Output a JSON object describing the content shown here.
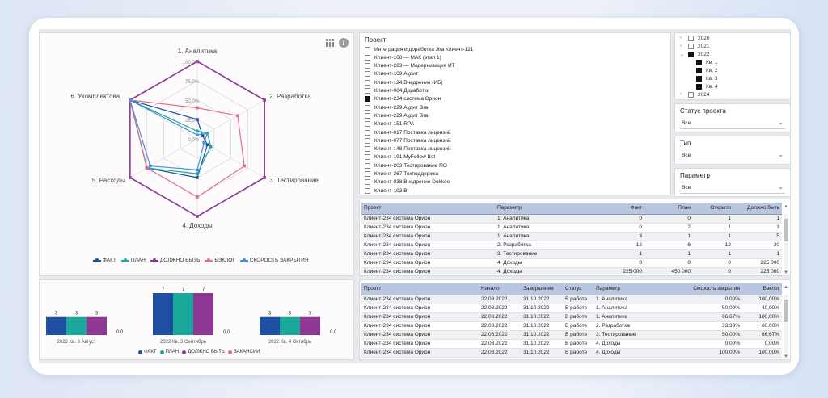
{
  "colors": {
    "fact": "#1f4fa3",
    "plan": "#1aa89a",
    "should": "#8e3794",
    "backlog": "#e46d8c",
    "speed": "#4a90d9",
    "vacancies": "#e46d8c"
  },
  "chart_data": [
    {
      "type": "radar",
      "categories": [
        "1. Аналитика",
        "2. Разработка",
        "3. Тестирование",
        "4. Доходы",
        "5. Расходы",
        "6. Укомплектова..."
      ],
      "radial_ticks": [
        "100,0%",
        "75,0%",
        "50,0%",
        "25,0%",
        "0,0%"
      ],
      "rlim": [
        0,
        100
      ],
      "series": [
        {
          "name": "ФАКТ",
          "values": [
            25,
            8,
            15,
            50,
            75,
            100
          ]
        },
        {
          "name": "ПЛАН",
          "values": [
            10,
            15,
            20,
            45,
            75,
            100
          ]
        },
        {
          "name": "ДОЛЖНО БЫТЬ",
          "values": [
            100,
            100,
            100,
            100,
            100,
            100
          ]
        },
        {
          "name": "БЭКЛОГ",
          "values": [
            40,
            60,
            70,
            75,
            75,
            100
          ]
        },
        {
          "name": "СКОРОСТЬ ЗАКРЫТИЯ",
          "values": [
            5,
            15,
            10,
            40,
            70,
            100
          ]
        }
      ],
      "legend_position": "bottom"
    },
    {
      "type": "bar",
      "categories": [
        "2022 Кв. 3 Август",
        "2022 Кв. 3 Сентябрь",
        "2022 Кв. 4 Октябрь"
      ],
      "series": [
        {
          "name": "ФАКТ",
          "values": [
            3,
            7,
            3
          ]
        },
        {
          "name": "ПЛАН",
          "values": [
            3,
            7,
            3
          ]
        },
        {
          "name": "ДОЛЖНО БЫТЬ",
          "values": [
            3,
            7,
            3
          ]
        },
        {
          "name": "ВАКАНСИИ",
          "values": [
            0,
            0,
            0
          ]
        }
      ],
      "vacancy_labels": [
        "0,0",
        "0,0",
        "0,0"
      ],
      "ylim": [
        0,
        7
      ],
      "legend_position": "bottom"
    }
  ],
  "project_slicer": {
    "title": "Проект",
    "items": [
      {
        "label": "Интеграция и доработка Jira Клиент-121",
        "checked": false
      },
      {
        "label": "Клиент-168 — МАК (этап 1)",
        "checked": false
      },
      {
        "label": "Клиент-283 — Модернизация ИТ",
        "checked": false
      },
      {
        "label": "Клиент-169 Аудит",
        "checked": false
      },
      {
        "label": "Клиент-124 Внедрение (ИБ)",
        "checked": false
      },
      {
        "label": "Клиент-064 Доработки",
        "checked": false
      },
      {
        "label": "Клиент-234 система Орион",
        "checked": true
      },
      {
        "label": "Клиент-229 Аудит Jira",
        "checked": false
      },
      {
        "label": "Клиент-229 Аудит Jira",
        "checked": false
      },
      {
        "label": "Клиент-151 RPA",
        "checked": false
      },
      {
        "label": "Клиент-017 Поставка лицензий",
        "checked": false
      },
      {
        "label": "Клиент-077 Поставка лицензий",
        "checked": false
      },
      {
        "label": "Клиент-148 Поставка лицензий",
        "checked": false
      },
      {
        "label": "Клиент-191 MyFellow Bot",
        "checked": false
      },
      {
        "label": "Клиент-203 Тестирование ПО",
        "checked": false
      },
      {
        "label": "Клиент-267 Техподдержка",
        "checked": false
      },
      {
        "label": "Клиент-038 Внедрение Dokkee",
        "checked": false
      },
      {
        "label": "Клиент-193 BI",
        "checked": false
      }
    ]
  },
  "year_slicer": {
    "items": [
      {
        "label": "2020",
        "level": 0,
        "checked": false,
        "expanded": false
      },
      {
        "label": "2021",
        "level": 0,
        "checked": false,
        "expanded": false
      },
      {
        "label": "2022",
        "level": 0,
        "checked": true,
        "expanded": true
      },
      {
        "label": "Кв. 1",
        "level": 1,
        "checked": true,
        "expanded": false
      },
      {
        "label": "Кв. 2",
        "level": 1,
        "checked": true,
        "expanded": false
      },
      {
        "label": "Кв. 3",
        "level": 1,
        "checked": true,
        "expanded": false
      },
      {
        "label": "Кв. 4",
        "level": 1,
        "checked": true,
        "expanded": false
      },
      {
        "label": "2024",
        "level": 0,
        "checked": false,
        "expanded": false
      }
    ]
  },
  "status_slicer": {
    "title": "Статус проекта",
    "value": "Все"
  },
  "type_slicer": {
    "title": "Тип",
    "value": "Все"
  },
  "param_slicer": {
    "title": "Параметр",
    "value": "Все"
  },
  "table1": {
    "headers": [
      "Проект",
      "Параметр",
      "Факт",
      "План",
      "Открыто",
      "Должно быть"
    ],
    "rows": [
      [
        "Клиент-234 система Орион",
        "1. Аналитика",
        "0",
        "0",
        "1",
        "1"
      ],
      [
        "Клиент-234 система Орион",
        "1. Аналитика",
        "0",
        "2",
        "1",
        "3"
      ],
      [
        "Клиент-234 система Орион",
        "1. Аналитика",
        "3",
        "1",
        "1",
        "5"
      ],
      [
        "Клиент-234 система Орион",
        "2. Разработка",
        "12",
        "6",
        "12",
        "30"
      ],
      [
        "Клиент-234 система Орион",
        "3. Тестирование",
        "1",
        "1",
        "1",
        "1"
      ],
      [
        "Клиент-234 система Орион",
        "4. Доходы",
        "0",
        "0",
        "0",
        "225 000"
      ],
      [
        "Клиент-234 система Орион",
        "4. Доходы",
        "225 000",
        "450 000",
        "0",
        "225 000"
      ]
    ]
  },
  "table2": {
    "headers": [
      "Проект",
      "Начало",
      "Завершение",
      "Статус",
      "Параметр",
      "Скорость закрытия",
      "Бэклог"
    ],
    "rows": [
      [
        "Клиент-234 система Орион",
        "22.08.2022",
        "31.10.2022",
        "В работе",
        "1. Аналитика",
        "0,00%",
        "100,00%"
      ],
      [
        "Клиент-234 система Орион",
        "22.08.2022",
        "31.10.2022",
        "В работе",
        "1. Аналитика",
        "50,00%",
        "40,00%"
      ],
      [
        "Клиент-234 система Орион",
        "22.08.2022",
        "31.10.2022",
        "В работе",
        "1. Аналитика",
        "66,67%",
        "100,00%"
      ],
      [
        "Клиент-234 система Орион",
        "22.08.2022",
        "31.10.2022",
        "В работе",
        "2. Разработка",
        "33,33%",
        "60,00%"
      ],
      [
        "Клиент-234 система Орион",
        "22.08.2022",
        "31.10.2022",
        "В работе",
        "3. Тестирование",
        "50,00%",
        "66,67%"
      ],
      [
        "Клиент-234 система Орион",
        "22.08.2022",
        "31.10.2022",
        "В работе",
        "4. Доходы",
        "0,00%",
        "0,00%"
      ],
      [
        "Клиент-234 система Орион",
        "22.08.2022",
        "31.10.2022",
        "В работе",
        "4. Доходы",
        "100,00%",
        "100,00%"
      ]
    ]
  }
}
